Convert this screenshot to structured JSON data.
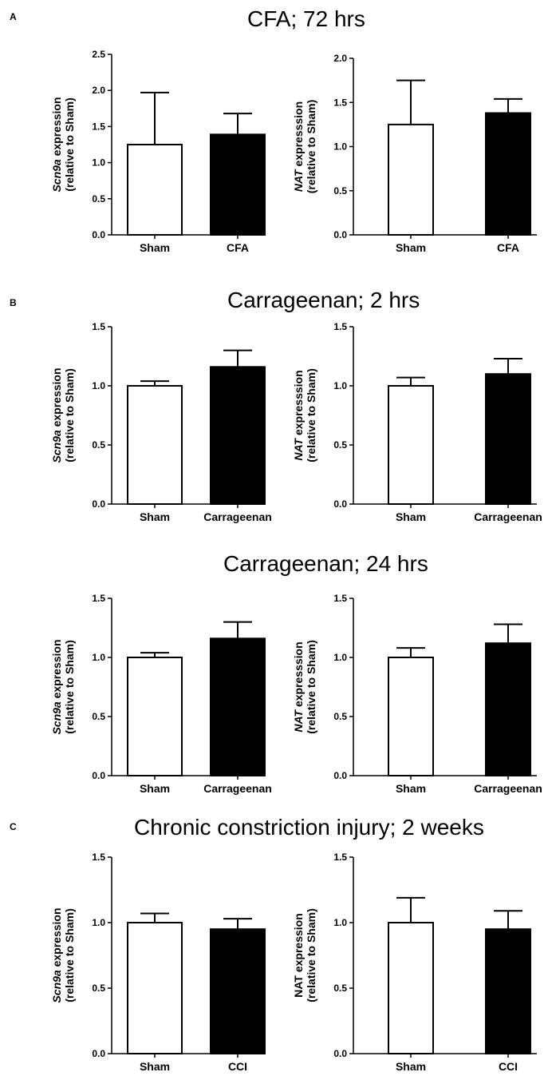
{
  "sections": [
    {
      "letter": "A",
      "title": "CFA; 72 hrs"
    },
    {
      "letter": "B",
      "title": "Carrageenan; 2 hrs"
    },
    {
      "letter": "",
      "title": "Carrageenan; 24 hrs"
    },
    {
      "letter": "C",
      "title": "Chronic constriction injury; 2 weeks"
    }
  ],
  "colors": {
    "control_fill": "#ffffff",
    "treated_fill": "#000000",
    "stroke": "#000000"
  },
  "chart_data": [
    {
      "type": "bar",
      "categories": [
        "Sham",
        "CFA"
      ],
      "values": [
        1.25,
        1.39
      ],
      "errors": [
        0.72,
        0.29
      ],
      "ylim": [
        0,
        2.5
      ],
      "yticks": [
        "0.0",
        "0.5",
        "1.0",
        "1.5",
        "2.0",
        "2.5"
      ],
      "ylabel_italic": "Scn9a",
      "ylabel_rest": " expression",
      "ylabel_line2": "(relative to Sham)"
    },
    {
      "type": "bar",
      "categories": [
        "Sham",
        "CFA"
      ],
      "values": [
        1.25,
        1.38
      ],
      "errors": [
        0.5,
        0.16
      ],
      "ylim": [
        0,
        2.0
      ],
      "yticks": [
        "0.0",
        "0.5",
        "1.0",
        "1.5",
        "2.0"
      ],
      "ylabel_italic": "NAT",
      "ylabel_rest": " expresssion",
      "ylabel_line2": "(relative to Sham)"
    },
    {
      "type": "bar",
      "categories": [
        "Sham",
        "Carrageenan"
      ],
      "values": [
        1.0,
        1.16
      ],
      "errors": [
        0.04,
        0.14
      ],
      "ylim": [
        0,
        1.5
      ],
      "yticks": [
        "0.0",
        "0.5",
        "1.0",
        "1.5"
      ],
      "ylabel_italic": "Scn9a",
      "ylabel_rest": " expression",
      "ylabel_line2": "(relative to Sham)"
    },
    {
      "type": "bar",
      "categories": [
        "Sham",
        "Carrageenan"
      ],
      "values": [
        1.0,
        1.1
      ],
      "errors": [
        0.07,
        0.13
      ],
      "ylim": [
        0,
        1.5
      ],
      "yticks": [
        "0.0",
        "0.5",
        "1.0",
        "1.5"
      ],
      "ylabel_italic": "NAT",
      "ylabel_rest": " expresssion",
      "ylabel_line2": "(relative to Sham)"
    },
    {
      "type": "bar",
      "categories": [
        "Sham",
        "Carrageenan"
      ],
      "values": [
        1.0,
        1.16
      ],
      "errors": [
        0.04,
        0.14
      ],
      "ylim": [
        0,
        1.5
      ],
      "yticks": [
        "0.0",
        "0.5",
        "1.0",
        "1.5"
      ],
      "ylabel_italic": "Scn9a",
      "ylabel_rest": " expression",
      "ylabel_line2": "(relative to Sham)"
    },
    {
      "type": "bar",
      "categories": [
        "Sham",
        "Carrageenan"
      ],
      "values": [
        1.0,
        1.12
      ],
      "errors": [
        0.08,
        0.16
      ],
      "ylim": [
        0,
        1.5
      ],
      "yticks": [
        "0.0",
        "0.5",
        "1.0",
        "1.5"
      ],
      "ylabel_italic": "NAT",
      "ylabel_rest": " expresssion",
      "ylabel_line2": "(relative to Sham)"
    },
    {
      "type": "bar",
      "categories": [
        "Sham",
        "CCI"
      ],
      "values": [
        1.0,
        0.95
      ],
      "errors": [
        0.07,
        0.08
      ],
      "ylim": [
        0,
        1.5
      ],
      "yticks": [
        "0.0",
        "0.5",
        "1.0",
        "1.5"
      ],
      "ylabel_italic": "Scn9a",
      "ylabel_rest": " expression",
      "ylabel_line2": "(relative to Sham)"
    },
    {
      "type": "bar",
      "categories": [
        "Sham",
        "CCI"
      ],
      "values": [
        1.0,
        0.95
      ],
      "errors": [
        0.19,
        0.14
      ],
      "ylim": [
        0,
        1.5
      ],
      "yticks": [
        "0.0",
        "0.5",
        "1.0",
        "1.5"
      ],
      "ylabel_italic": "",
      "ylabel_rest": "NAT expression",
      "ylabel_line2": "(relative to Sham)"
    }
  ]
}
